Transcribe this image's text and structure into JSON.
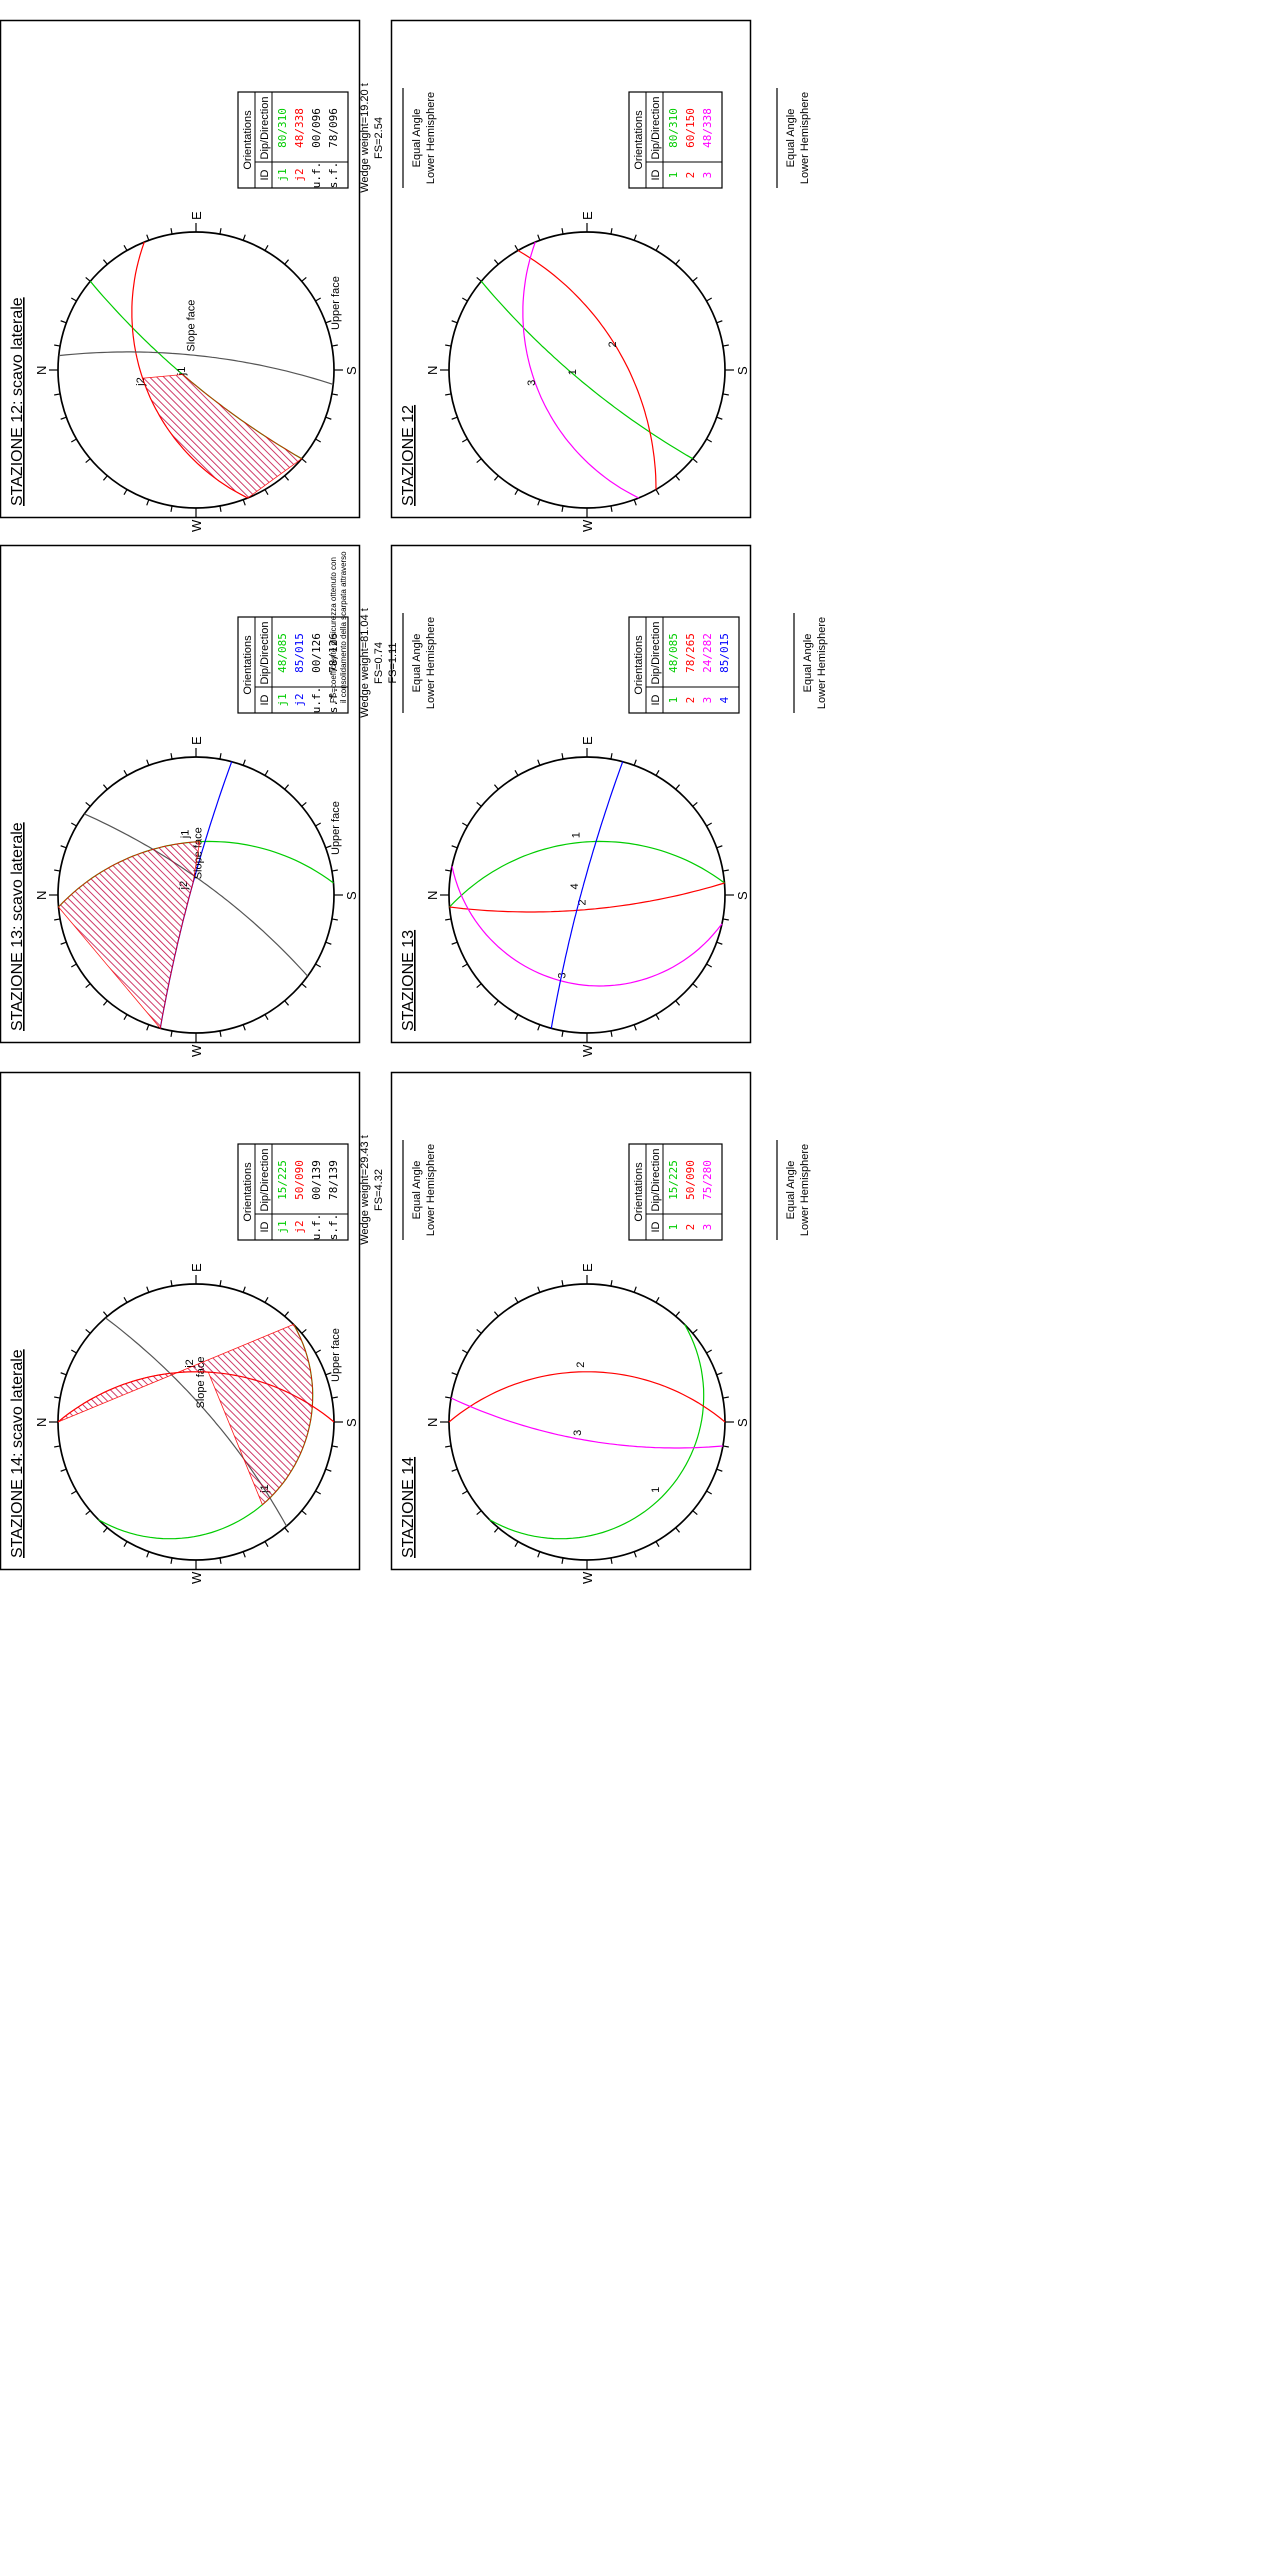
{
  "colors": {
    "frame": "#000000",
    "green": "#00cc00",
    "red": "#ff0000",
    "magenta": "#ff00ff",
    "blue": "#0000ff",
    "hatch": "#c0003c",
    "gray": "#555555"
  },
  "common": {
    "projection_line1": "Equal Angle",
    "projection_line2": "Lower Hemisphere",
    "table_header_orient": "Orientations",
    "table_header_id": "ID",
    "table_header_dip": "Dip/Direction",
    "dir_labels": {
      "N": "N",
      "S": "S",
      "E": "E",
      "W": "W"
    }
  },
  "panels": [
    {
      "title": "STAZIONE 12",
      "rows": [
        {
          "id": "1",
          "dip": "80/310",
          "color": "green"
        },
        {
          "id": "2",
          "dip": "60/150",
          "color": "red"
        },
        {
          "id": "3",
          "dip": "48/338",
          "color": "magenta"
        }
      ],
      "plane_labels": [
        "1",
        "2",
        "3"
      ]
    },
    {
      "title": "STAZIONE 12: scavo laterale",
      "rows": [
        {
          "id": "j1",
          "dip": "80/310",
          "color": "green"
        },
        {
          "id": "j2",
          "dip": "48/338",
          "color": "red"
        },
        {
          "id": "u.f.",
          "dip": "00/096",
          "color": "frame"
        },
        {
          "id": "s.f.",
          "dip": "78/096",
          "color": "frame"
        }
      ],
      "stats": [
        "Wedge weight=19.20 t",
        "FS=2.54"
      ],
      "labels": {
        "j1": "j1",
        "j2": "j2",
        "slope": "Slope face",
        "upper": "Upper face"
      }
    },
    {
      "title": "STAZIONE 13",
      "rows": [
        {
          "id": "1",
          "dip": "48/085",
          "color": "green"
        },
        {
          "id": "2",
          "dip": "78/265",
          "color": "red"
        },
        {
          "id": "3",
          "dip": "24/282",
          "color": "magenta"
        },
        {
          "id": "4",
          "dip": "85/015",
          "color": "blue"
        }
      ],
      "plane_labels": [
        "1",
        "2",
        "3",
        "4"
      ]
    },
    {
      "title": "STAZIONE 13: scavo laterale",
      "rows": [
        {
          "id": "j1",
          "dip": "48/085",
          "color": "green"
        },
        {
          "id": "j2",
          "dip": "85/015",
          "color": "blue"
        },
        {
          "id": "u.f.",
          "dip": "00/126",
          "color": "frame"
        },
        {
          "id": "s.f.",
          "dip": "78/126",
          "color": "frame"
        }
      ],
      "stats": [
        "Wedge weight=81.04 t",
        "FS=0.74",
        "FS=1.11"
      ],
      "labels": {
        "j1": "j1",
        "j2": "j2",
        "slope": "Slope face",
        "upper": "Upper face"
      },
      "note": [
        "FS=coefficiente di sicurezza ottenuto con",
        "il consolidamento della scarpata attraverso"
      ]
    },
    {
      "title": "STAZIONE 14",
      "rows": [
        {
          "id": "1",
          "dip": "15/225",
          "color": "green"
        },
        {
          "id": "2",
          "dip": "50/090",
          "color": "red"
        },
        {
          "id": "3",
          "dip": "75/280",
          "color": "magenta"
        }
      ],
      "plane_labels": [
        "1",
        "2",
        "3"
      ]
    },
    {
      "title": "STAZIONE 14: scavo laterale",
      "rows": [
        {
          "id": "j1",
          "dip": "15/225",
          "color": "green"
        },
        {
          "id": "j2",
          "dip": "50/090",
          "color": "red"
        },
        {
          "id": "u.f.",
          "dip": "00/139",
          "color": "frame"
        },
        {
          "id": "s.f.",
          "dip": "78/139",
          "color": "frame"
        }
      ],
      "stats": [
        "Wedge weight=29.43 t",
        "FS=4.32"
      ],
      "labels": {
        "j1": "j1",
        "j2": "j2",
        "slope": "Slope face",
        "upper": "Upper face"
      }
    }
  ]
}
